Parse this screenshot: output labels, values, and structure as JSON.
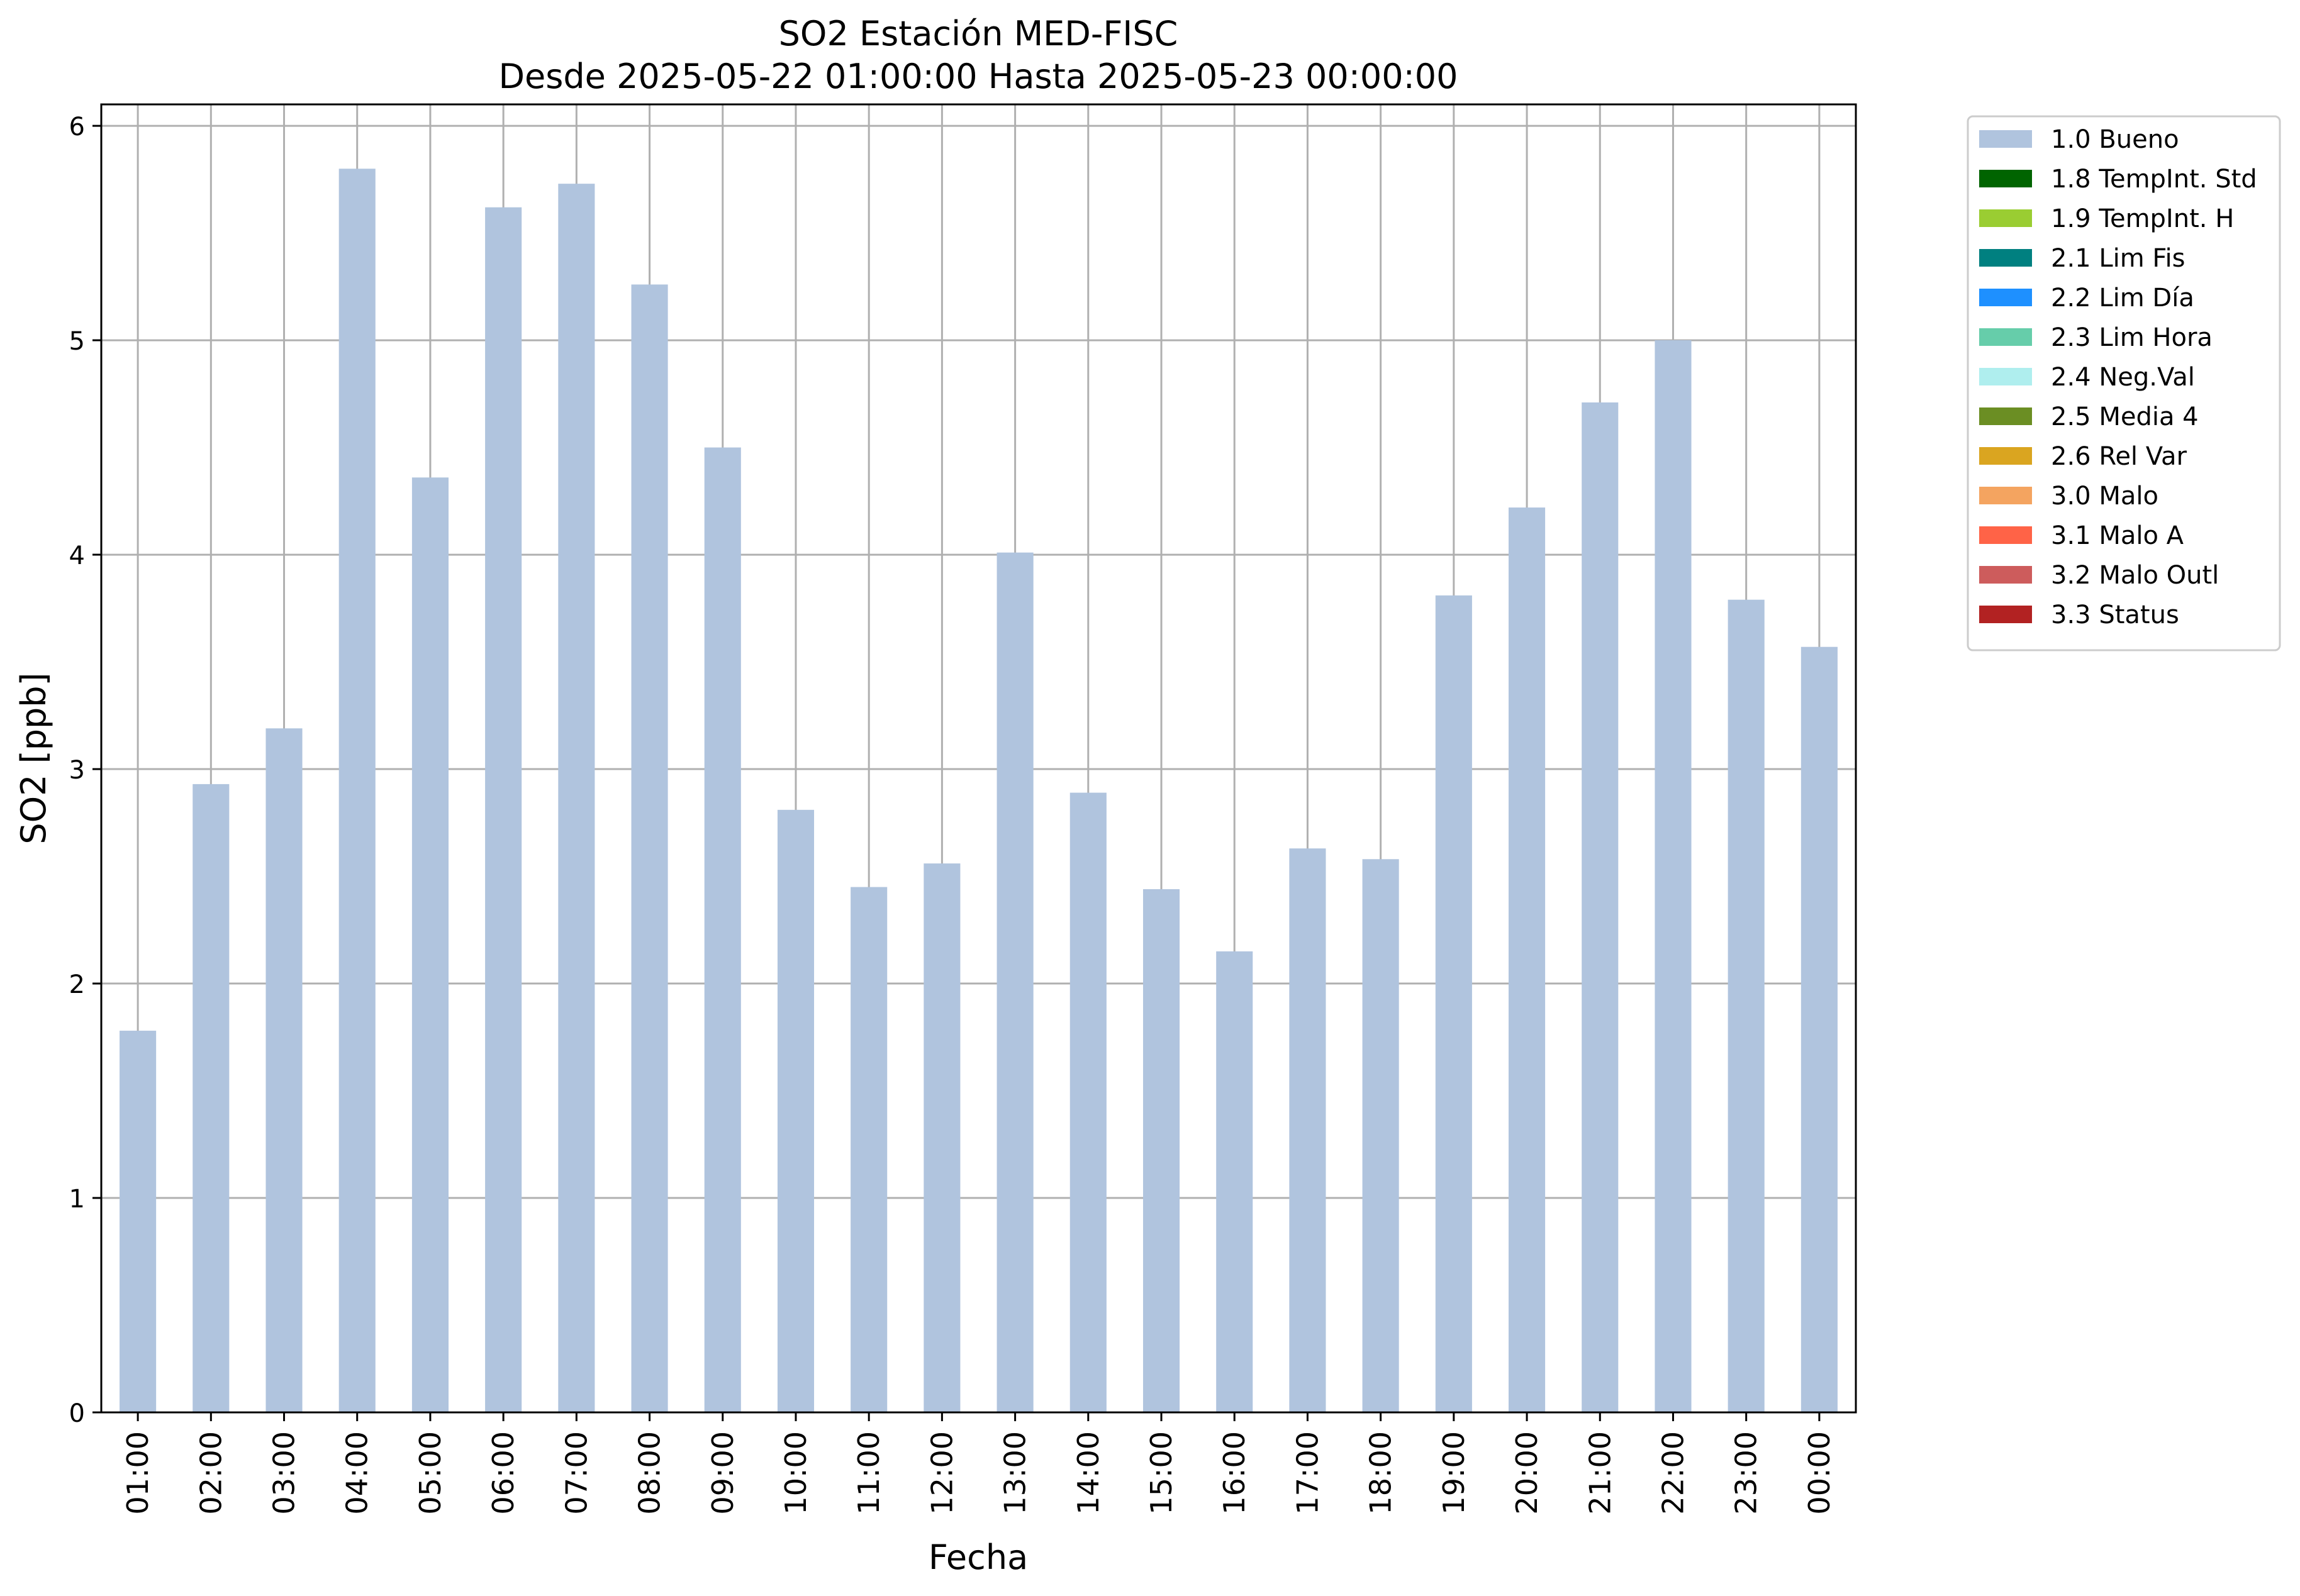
{
  "chart_data": {
    "type": "bar",
    "title": "SO2 Estación MED-FISC",
    "subtitle": "Desde 2025-05-22 01:00:00 Hasta 2025-05-23 00:00:00",
    "xlabel": "Fecha",
    "ylabel": "SO2 [ppb]",
    "ylim": [
      0,
      6.1
    ],
    "yticks": [
      "0",
      "1",
      "2",
      "3",
      "4",
      "5",
      "6"
    ],
    "grid": true,
    "legend_position": "outside-top-right",
    "categories": [
      "01:00",
      "02:00",
      "03:00",
      "04:00",
      "05:00",
      "06:00",
      "07:00",
      "08:00",
      "09:00",
      "10:00",
      "11:00",
      "12:00",
      "13:00",
      "14:00",
      "15:00",
      "16:00",
      "17:00",
      "18:00",
      "19:00",
      "20:00",
      "21:00",
      "22:00",
      "23:00",
      "00:00"
    ],
    "series": [
      {
        "name": "1.0 Bueno",
        "color": "#b0c4de",
        "values": [
          1.78,
          2.93,
          3.19,
          5.8,
          4.36,
          5.62,
          5.73,
          5.26,
          4.5,
          2.81,
          2.45,
          2.56,
          4.01,
          2.89,
          2.44,
          2.15,
          2.63,
          2.58,
          3.81,
          4.22,
          4.71,
          5.0,
          3.79,
          3.57
        ]
      }
    ],
    "legend": [
      {
        "label": "1.0 Bueno",
        "color": "#b0c4de"
      },
      {
        "label": "1.8 TempInt. Std",
        "color": "#006400"
      },
      {
        "label": "1.9 TempInt. H",
        "color": "#9acd32"
      },
      {
        "label": "2.1 Lim Fis",
        "color": "#008080"
      },
      {
        "label": "2.2 Lim Día",
        "color": "#1e90ff"
      },
      {
        "label": "2.3 Lim Hora",
        "color": "#66cdaa"
      },
      {
        "label": "2.4 Neg.Val",
        "color": "#afeeee"
      },
      {
        "label": "2.5 Media 4",
        "color": "#6b8e23"
      },
      {
        "label": "2.6 Rel Var",
        "color": "#daa520"
      },
      {
        "label": "3.0 Malo",
        "color": "#f4a460"
      },
      {
        "label": "3.1 Malo A",
        "color": "#ff6347"
      },
      {
        "label": "3.2 Malo Outl",
        "color": "#cd5c5c"
      },
      {
        "label": "3.3 Status",
        "color": "#b22222"
      }
    ]
  }
}
